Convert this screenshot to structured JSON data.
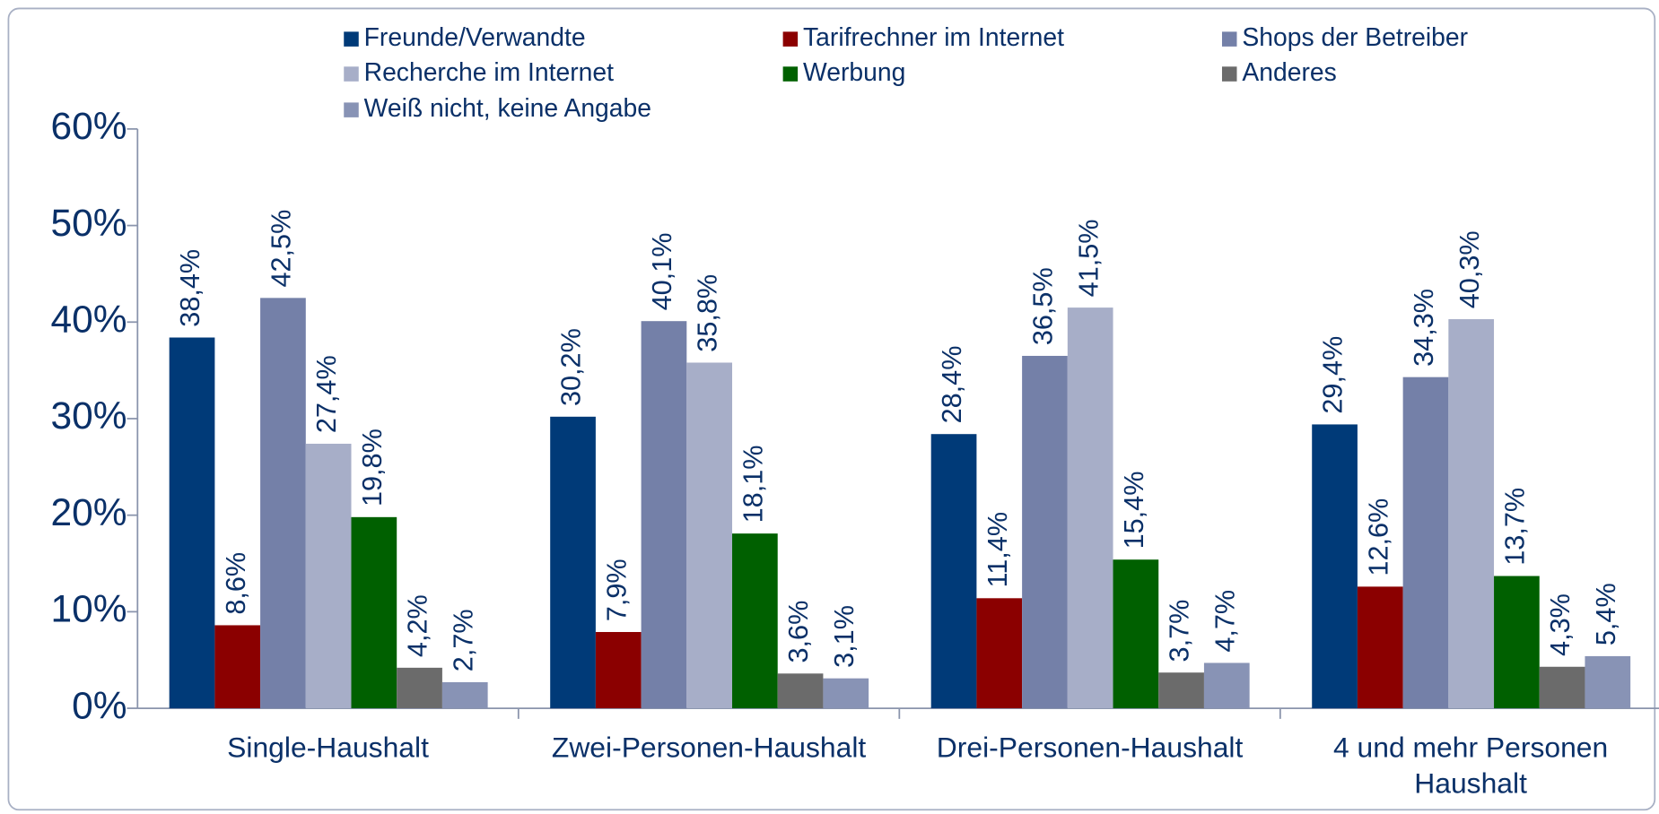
{
  "chart_data": {
    "type": "bar",
    "categories": [
      "Single-Haushalt",
      "Zwei-Personen-Haushalt",
      "Drei-Personen-Haushalt",
      "4 und mehr Personen Haushalt"
    ],
    "series": [
      {
        "name": "Freunde/Verwandte",
        "color": "#003a78",
        "values": [
          38.4,
          30.2,
          28.4,
          29.4
        ],
        "value_labels": [
          "38,4%",
          "30,2%",
          "28,4%",
          "29,4%"
        ]
      },
      {
        "name": "Tarifrechner im Internet",
        "color": "#8b0000",
        "values": [
          8.6,
          7.9,
          11.4,
          12.6
        ],
        "value_labels": [
          "8,6%",
          "7,9%",
          "11,4%",
          "12,6%"
        ]
      },
      {
        "name": "Shops der Betreiber",
        "color": "#7480a8",
        "values": [
          42.5,
          40.1,
          36.5,
          34.3
        ],
        "value_labels": [
          "42,5%",
          "40,1%",
          "36,5%",
          "34,3%"
        ]
      },
      {
        "name": "Recherche im Internet",
        "color": "#a7aec8",
        "values": [
          27.4,
          35.8,
          41.5,
          40.3
        ],
        "value_labels": [
          "27,4%",
          "35,8%",
          "41,5%",
          "40,3%"
        ]
      },
      {
        "name": "Werbung",
        "color": "#006000",
        "values": [
          19.8,
          18.1,
          15.4,
          13.7
        ],
        "value_labels": [
          "19,8%",
          "18,1%",
          "15,4%",
          "13,7%"
        ]
      },
      {
        "name": "Anderes",
        "color": "#6b6b6b",
        "values": [
          4.2,
          3.6,
          3.7,
          4.3
        ],
        "value_labels": [
          "4,2%",
          "3,6%",
          "3,7%",
          "4,3%"
        ]
      },
      {
        "name": "Weiß nicht, keine Angabe",
        "color": "#8893b5",
        "values": [
          2.7,
          3.1,
          4.7,
          5.4
        ],
        "value_labels": [
          "2,7%",
          "3,1%",
          "4,7%",
          "5,4%"
        ]
      }
    ],
    "ylim": [
      0,
      60
    ],
    "yticks": [
      {
        "value": 0,
        "label": "0%"
      },
      {
        "value": 10,
        "label": "10%"
      },
      {
        "value": 20,
        "label": "20%"
      },
      {
        "value": 30,
        "label": "30%"
      },
      {
        "value": 40,
        "label": "40%"
      },
      {
        "value": 50,
        "label": "50%"
      },
      {
        "value": 60,
        "label": "60%"
      }
    ],
    "legend": "top"
  }
}
